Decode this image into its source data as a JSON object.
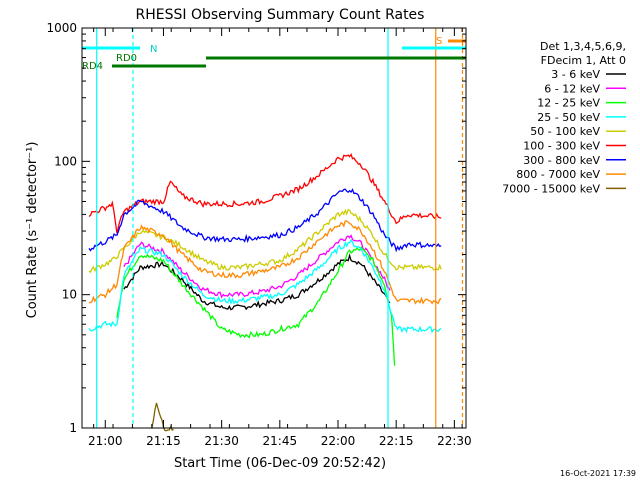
{
  "chart_data": {
    "type": "line",
    "title": "RHESSI Observing Summary Count Rates",
    "xlabel": "Start Time (06-Dec-09 20:52:42)",
    "ylabel": "Count Rate (s⁻¹ detector⁻¹)",
    "yscale": "log",
    "ylim": [
      1,
      1000
    ],
    "xlim_minutes": [
      20.9,
      22.55
    ],
    "y_ticks": [
      "1",
      "10",
      "100",
      "1000"
    ],
    "x_ticks": [
      {
        "label": "21:00",
        "hour": 21.0
      },
      {
        "label": "21:15",
        "hour": 21.25
      },
      {
        "label": "21:30",
        "hour": 21.5
      },
      {
        "label": "21:45",
        "hour": 21.75
      },
      {
        "label": "22:00",
        "hour": 22.0
      },
      {
        "label": "22:15",
        "hour": 22.25
      },
      {
        "label": "22:30",
        "hour": 22.5
      }
    ],
    "legend_title": [
      "Det 1,3,4,5,6,9,",
      "FDecim 1, Att 0"
    ],
    "legend_position": "right",
    "series": [
      {
        "name": "3 - 6 keV",
        "color": "#000000",
        "x": [
          21.0,
          21.08,
          21.15,
          21.25,
          21.33,
          21.42,
          21.5,
          21.58,
          21.67,
          21.75,
          21.83,
          21.92,
          22.0,
          22.05,
          22.1,
          22.15,
          22.2,
          22.23
        ],
        "y": [
          null,
          11,
          16,
          17,
          13,
          9,
          8,
          8,
          8.5,
          9,
          10,
          13,
          17,
          19,
          17,
          13,
          10,
          8
        ]
      },
      {
        "name": "6 - 12 keV",
        "color": "#ff00ff",
        "x": [
          21.0,
          21.05,
          21.08,
          21.15,
          21.25,
          21.33,
          21.42,
          21.5,
          21.58,
          21.67,
          21.75,
          21.83,
          21.92,
          22.0,
          22.05,
          22.1,
          22.15,
          22.2,
          22.23
        ],
        "y": [
          null,
          null,
          16,
          24,
          21,
          15,
          11,
          10,
          10,
          10.5,
          11.5,
          14,
          19,
          25,
          28,
          24,
          18,
          13,
          10
        ]
      },
      {
        "name": "12 - 25 keV",
        "color": "#00ff00",
        "x": [
          21.05,
          21.08,
          21.15,
          21.25,
          21.33,
          21.42,
          21.5,
          21.58,
          21.67,
          21.75,
          21.83,
          21.92,
          22.0,
          22.05,
          22.1,
          22.15,
          22.2,
          22.23,
          22.25
        ],
        "y": [
          7,
          13,
          20,
          18,
          12,
          8,
          5.5,
          5,
          5,
          5.5,
          6,
          9,
          15,
          21,
          22,
          18,
          12,
          7,
          2
        ]
      },
      {
        "name": "25 - 50 keV",
        "color": "#00ffff",
        "x": [
          20.93,
          21.0,
          21.05,
          21.08,
          21.15,
          21.25,
          21.33,
          21.42,
          21.5,
          21.58,
          21.67,
          21.75,
          21.83,
          21.92,
          22.0,
          22.05,
          22.1,
          22.15,
          22.2,
          22.25,
          22.3,
          22.45
        ],
        "y": [
          5.5,
          6,
          6,
          14,
          22,
          20,
          14,
          10,
          9,
          9,
          9.5,
          10,
          12,
          16,
          22,
          25,
          22,
          16,
          11,
          5.5,
          5.5,
          5.5
        ]
      },
      {
        "name": "50 - 100 keV",
        "color": "#cccc00",
        "x": [
          20.93,
          21.0,
          21.03,
          21.08,
          21.15,
          21.25,
          21.33,
          21.42,
          21.5,
          21.58,
          21.67,
          21.75,
          21.83,
          21.92,
          22.0,
          22.05,
          22.1,
          22.15,
          22.2,
          22.25,
          22.3,
          22.45
        ],
        "y": [
          15,
          17,
          18,
          22,
          30,
          27,
          23,
          18,
          16,
          16,
          17,
          18,
          22,
          30,
          40,
          42,
          36,
          28,
          20,
          16,
          16,
          16
        ]
      },
      {
        "name": "100 - 300 keV",
        "color": "#ff0000",
        "x": [
          20.93,
          21.0,
          21.03,
          21.05,
          21.08,
          21.15,
          21.25,
          21.28,
          21.33,
          21.42,
          21.5,
          21.58,
          21.67,
          21.75,
          21.83,
          21.92,
          22.0,
          22.05,
          22.1,
          22.15,
          22.2,
          22.25,
          22.3,
          22.45
        ],
        "y": [
          40,
          45,
          48,
          30,
          42,
          50,
          50,
          70,
          55,
          48,
          48,
          48,
          50,
          55,
          62,
          80,
          105,
          110,
          95,
          70,
          50,
          35,
          40,
          38
        ]
      },
      {
        "name": "300 - 800 keV",
        "color": "#0000ff",
        "x": [
          20.93,
          21.0,
          21.05,
          21.08,
          21.15,
          21.25,
          21.33,
          21.42,
          21.5,
          21.58,
          21.67,
          21.75,
          21.83,
          21.92,
          22.0,
          22.05,
          22.1,
          22.15,
          22.2,
          22.25,
          22.3,
          22.45
        ],
        "y": [
          22,
          25,
          28,
          40,
          50,
          42,
          32,
          27,
          26,
          26,
          27,
          28,
          32,
          42,
          58,
          62,
          52,
          40,
          28,
          22,
          24,
          23
        ]
      },
      {
        "name": "800 - 7000 keV",
        "color": "#ff8800",
        "x": [
          20.93,
          21.0,
          21.05,
          21.08,
          21.15,
          21.25,
          21.33,
          21.42,
          21.5,
          21.58,
          21.67,
          21.75,
          21.83,
          21.92,
          22.0,
          22.05,
          22.1,
          22.15,
          22.2,
          22.25,
          22.3,
          22.45
        ],
        "y": [
          9,
          10,
          12,
          22,
          32,
          28,
          20,
          15,
          14,
          14,
          15,
          16,
          19,
          26,
          33,
          35,
          30,
          22,
          15,
          9,
          9,
          9
        ]
      },
      {
        "name": "7000 - 15000 keV",
        "color": "#806000",
        "x": [
          21.2,
          21.22,
          21.25,
          21.3
        ],
        "y": [
          1,
          1.6,
          1,
          1
        ]
      }
    ],
    "attenuator_bars": [
      {
        "label": "N",
        "color": "#00ffff"
      },
      {
        "label": "RD0",
        "color": "#007700"
      },
      {
        "label": "RD4",
        "color": "#007700"
      },
      {
        "label": "S",
        "color": "#ff8800"
      }
    ]
  },
  "footer": {
    "timestamp": "16-Oct-2021 17:39"
  }
}
